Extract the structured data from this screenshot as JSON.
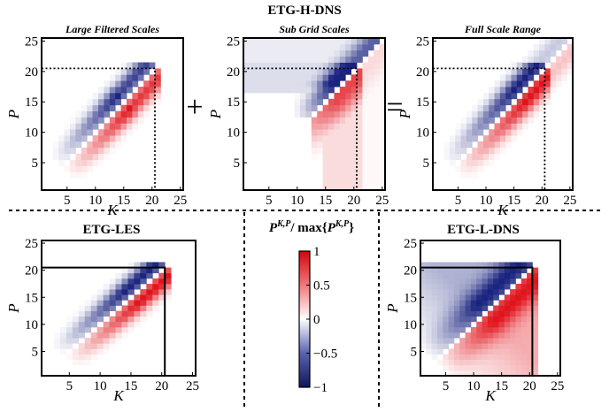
{
  "figure": {
    "top_title": "ETG-H-DNS",
    "plus_sign": "+",
    "equals_sign": "=",
    "colorbar_label_main": "P",
    "colorbar_label_sup": "K,P",
    "colorbar_label_mid": "/ max{",
    "colorbar_label_end": "}",
    "colorbar_ticks": [
      "1",
      "0.5",
      "0",
      "−0.5",
      "−1"
    ],
    "colors": {
      "positive": "#e0141c",
      "negative": "#1a237e",
      "zero": "#ffffff"
    }
  },
  "chart_data": [
    {
      "type": "heatmap",
      "title": "Large Filtered Scales",
      "xlabel": "K",
      "ylabel": "P",
      "xticks": [
        "5",
        "10",
        "15",
        "20",
        "25"
      ],
      "yticks": [
        "5",
        "10",
        "15",
        "20",
        "25"
      ],
      "xlim": [
        1,
        25
      ],
      "ylim": [
        1,
        25
      ],
      "filter_cutoff": 21,
      "content": "large-filtered",
      "colorbar_range": [
        -1,
        1
      ]
    },
    {
      "type": "heatmap",
      "title": "Sub Grid Scales",
      "xlabel": "",
      "ylabel": "P",
      "xticks": [
        "5",
        "10",
        "15",
        "20",
        "25"
      ],
      "yticks": [
        "5",
        "10",
        "15",
        "20",
        "25"
      ],
      "xlim": [
        1,
        25
      ],
      "ylim": [
        1,
        25
      ],
      "filter_cutoff": 21,
      "content": "sub-grid",
      "colorbar_range": [
        -1,
        1
      ]
    },
    {
      "type": "heatmap",
      "title": "Full Scale Range",
      "xlabel": "K",
      "ylabel": "P",
      "xticks": [
        "5",
        "10",
        "15",
        "20",
        "25"
      ],
      "yticks": [
        "5",
        "10",
        "15",
        "20",
        "25"
      ],
      "xlim": [
        1,
        25
      ],
      "ylim": [
        1,
        25
      ],
      "filter_cutoff": 21,
      "content": "full",
      "colorbar_range": [
        -1,
        1
      ]
    },
    {
      "type": "heatmap",
      "title": "ETG-LES",
      "xlabel": "K",
      "ylabel": "P",
      "xticks": [
        "5",
        "10",
        "15",
        "20",
        "25"
      ],
      "yticks": [
        "5",
        "10",
        "15",
        "20",
        "25"
      ],
      "xlim": [
        1,
        25
      ],
      "ylim": [
        1,
        25
      ],
      "domain_max": 21,
      "content": "les",
      "colorbar_range": [
        -1,
        1
      ]
    },
    {
      "type": "heatmap",
      "title": "ETG-L-DNS",
      "xlabel": "K",
      "ylabel": "P",
      "xticks": [
        "5",
        "10",
        "15",
        "20",
        "25"
      ],
      "yticks": [
        "5",
        "10",
        "15",
        "20",
        "25"
      ],
      "xlim": [
        1,
        25
      ],
      "ylim": [
        1,
        25
      ],
      "domain_max": 21,
      "content": "ldns",
      "colorbar_range": [
        -1,
        1
      ]
    }
  ]
}
